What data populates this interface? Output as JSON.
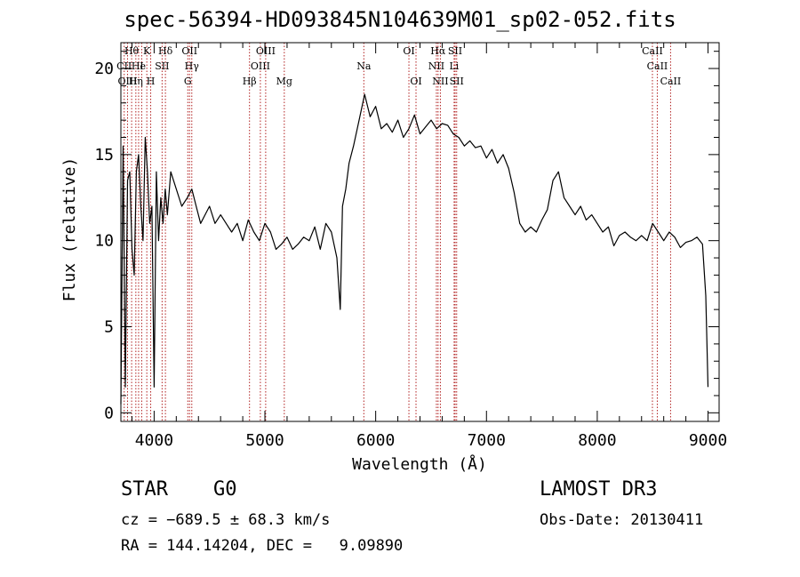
{
  "title": "spec-56394-HD093845N104639M01_sp02-052.fits",
  "object_class": "STAR",
  "object_subclass": "G0",
  "survey": "LAMOST DR3",
  "cz_text": "cz = −689.5 ± 68.3 km/s",
  "obs_date": "Obs-Date: 20130411",
  "radec_text": "RA = 144.14204, DEC =   9.09890",
  "chart_data": {
    "type": "line",
    "xlabel": "Wavelength (Å)",
    "ylabel": "Flux (relative)",
    "xlim": [
      3700,
      9100
    ],
    "ylim": [
      -0.5,
      21.5
    ],
    "xticks": [
      4000,
      5000,
      6000,
      7000,
      8000,
      9000
    ],
    "yticks": [
      0,
      5,
      10,
      15,
      20
    ],
    "colors": {
      "spectrum": "#000000",
      "line_marker": "#b22222"
    },
    "spectrum": {
      "x": [
        3700,
        3720,
        3740,
        3760,
        3780,
        3800,
        3820,
        3840,
        3860,
        3880,
        3900,
        3920,
        3940,
        3960,
        3980,
        4000,
        4020,
        4040,
        4060,
        4080,
        4100,
        4120,
        4150,
        4200,
        4250,
        4300,
        4340,
        4380,
        4420,
        4460,
        4500,
        4550,
        4600,
        4650,
        4700,
        4750,
        4800,
        4850,
        4900,
        4950,
        5000,
        5050,
        5100,
        5150,
        5200,
        5250,
        5300,
        5350,
        5400,
        5450,
        5500,
        5550,
        5600,
        5650,
        5680,
        5700,
        5730,
        5760,
        5800,
        5850,
        5900,
        5950,
        6000,
        6050,
        6100,
        6150,
        6200,
        6250,
        6300,
        6350,
        6400,
        6450,
        6500,
        6550,
        6600,
        6650,
        6700,
        6750,
        6800,
        6850,
        6900,
        6950,
        7000,
        7050,
        7100,
        7150,
        7200,
        7250,
        7300,
        7350,
        7400,
        7450,
        7500,
        7550,
        7600,
        7650,
        7700,
        7750,
        7800,
        7850,
        7900,
        7950,
        8000,
        8050,
        8100,
        8150,
        8200,
        8250,
        8300,
        8350,
        8400,
        8450,
        8500,
        8550,
        8600,
        8650,
        8700,
        8750,
        8800,
        8850,
        8900,
        8950,
        8980,
        9000
      ],
      "y": [
        0.5,
        15.5,
        1.5,
        13.5,
        14,
        9.5,
        8,
        14,
        15,
        12,
        10,
        16,
        14,
        11,
        12,
        1.5,
        14,
        10,
        12.5,
        11,
        13,
        11.5,
        14,
        13,
        12,
        12.5,
        13,
        12,
        11,
        11.5,
        12,
        11,
        11.5,
        11,
        10.5,
        11,
        10,
        11.2,
        10.5,
        10,
        11,
        10.5,
        9.5,
        9.8,
        10.2,
        9.5,
        9.8,
        10.2,
        10,
        10.8,
        9.5,
        11,
        10.5,
        9,
        6,
        12,
        13,
        14.5,
        15.5,
        17,
        18.5,
        17.2,
        17.8,
        16.5,
        16.8,
        16.3,
        17,
        16,
        16.5,
        17.3,
        16.2,
        16.6,
        17,
        16.5,
        16.8,
        16.7,
        16.2,
        16,
        15.5,
        15.8,
        15.4,
        15.5,
        14.8,
        15.3,
        14.5,
        15,
        14.2,
        12.8,
        11,
        10.5,
        10.8,
        10.5,
        11.2,
        11.8,
        13.5,
        14,
        12.5,
        12,
        11.5,
        12,
        11.2,
        11.5,
        11,
        10.5,
        10.8,
        9.7,
        10.3,
        10.5,
        10.2,
        10,
        10.3,
        10,
        11,
        10.5,
        10,
        10.5,
        10.2,
        9.6,
        9.9,
        10,
        10.2,
        9.8,
        6.8,
        1.5
      ]
    },
    "lines": [
      {
        "label": "Hθ",
        "wl": 3797,
        "row": 0
      },
      {
        "label": "K",
        "wl": 3934,
        "row": 0
      },
      {
        "label": "Hδ",
        "wl": 4102,
        "row": 0
      },
      {
        "label": "OII",
        "wl": 4320,
        "row": 0
      },
      {
        "label": "OIII",
        "wl": 5007,
        "row": 0
      },
      {
        "label": "OI",
        "wl": 6300,
        "row": 0
      },
      {
        "label": "Hα",
        "wl": 6563,
        "row": 0
      },
      {
        "label": "SII",
        "wl": 6717,
        "row": 0
      },
      {
        "label": "CaII",
        "wl": 8498,
        "row": 0
      },
      {
        "label": "CII",
        "wl": 3730,
        "row": 1
      },
      {
        "label": "He",
        "wl": 3860,
        "row": 1
      },
      {
        "label": "I",
        "wl": 3888,
        "row": 1
      },
      {
        "label": "SII",
        "wl": 4072,
        "row": 1
      },
      {
        "label": "Hγ",
        "wl": 4340,
        "row": 1
      },
      {
        "label": "OIII",
        "wl": 4959,
        "row": 1
      },
      {
        "label": "Na",
        "wl": 5893,
        "row": 1
      },
      {
        "label": "NII",
        "wl": 6548,
        "row": 1
      },
      {
        "label": "Li",
        "wl": 6708,
        "row": 1
      },
      {
        "label": "CaII",
        "wl": 8542,
        "row": 1
      },
      {
        "label": "OIII",
        "wl": 3760,
        "row": 2
      },
      {
        "label": "Hη",
        "wl": 3835,
        "row": 2
      },
      {
        "label": "H",
        "wl": 3969,
        "row": 2
      },
      {
        "label": "G",
        "wl": 4304,
        "row": 2
      },
      {
        "label": "Hβ",
        "wl": 4861,
        "row": 2
      },
      {
        "label": "Mg",
        "wl": 5175,
        "row": 2
      },
      {
        "label": "OI",
        "wl": 6364,
        "row": 2
      },
      {
        "label": "NII",
        "wl": 6584,
        "row": 2
      },
      {
        "label": "SII",
        "wl": 6731,
        "row": 2
      },
      {
        "label": "CaII",
        "wl": 8662,
        "row": 2
      }
    ]
  }
}
